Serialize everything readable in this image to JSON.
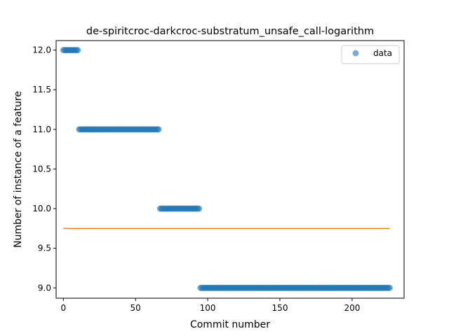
{
  "chart_data": {
    "type": "scatter",
    "title": "de-spiritcroc-darkcroc-substratum_unsafe_call-logarithm",
    "xlabel": "Commit number",
    "ylabel": "Number of instance of a feature",
    "xlim": [
      -5,
      236
    ],
    "ylim": [
      8.87,
      12.12
    ],
    "x_ticks": [
      0,
      50,
      100,
      150,
      200
    ],
    "x_tick_labels": [
      "0",
      "50",
      "100",
      "150",
      "200"
    ],
    "y_ticks": [
      9.0,
      9.5,
      10.0,
      10.5,
      11.0,
      11.5,
      12.0
    ],
    "y_tick_labels": [
      "9.0",
      "9.5",
      "10.0",
      "10.5",
      "11.0",
      "11.5",
      "12.0"
    ],
    "grid": false,
    "legend_placement": "top-right",
    "series": [
      {
        "name": "data",
        "kind": "scatter",
        "color": "#1f77b4",
        "alpha": 0.6,
        "runs": [
          {
            "x_start": 0,
            "x_end": 10,
            "y": 12.0
          },
          {
            "x_start": 11,
            "x_end": 66,
            "y": 11.0
          },
          {
            "x_start": 67,
            "x_end": 94,
            "y": 10.0
          },
          {
            "x_start": 95,
            "x_end": 226,
            "y": 9.0
          }
        ]
      },
      {
        "kind": "line",
        "color": "#ff7f0e",
        "x": [
          0,
          226
        ],
        "y": [
          9.75,
          9.75
        ]
      }
    ]
  }
}
